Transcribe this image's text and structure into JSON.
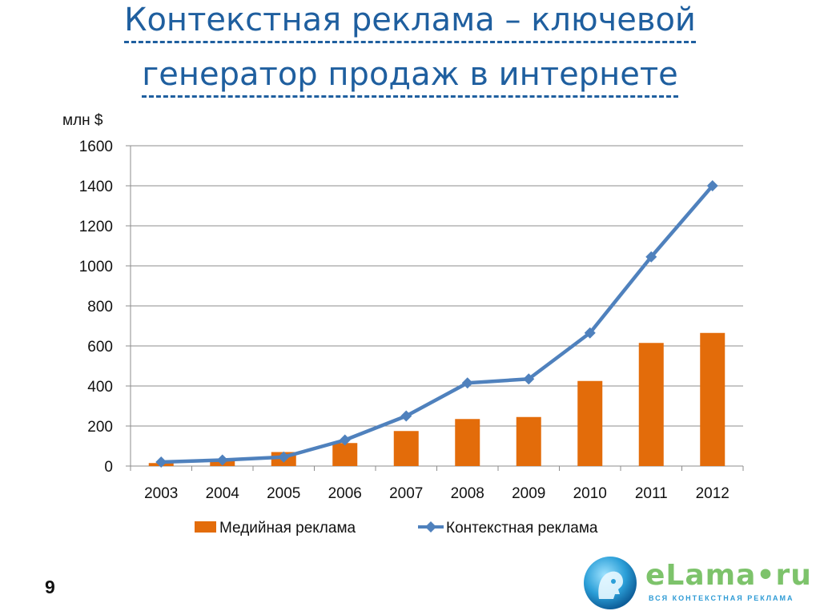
{
  "title": {
    "line1": "Контекстная реклама – ключевой",
    "line2": "генератор продаж в интернете"
  },
  "page_number": "9",
  "logo": {
    "name": "eLama•ru",
    "tagline": "ВСЯ КОНТЕКСТНАЯ РЕКЛАМА"
  },
  "colors": {
    "title": "#1f5f9f",
    "bar": "#e36c0a",
    "line": "#4f81bd"
  },
  "chart_data": {
    "type": "bar",
    "title": "",
    "ylabel": "млн $",
    "xlabel": "",
    "ylim": [
      0,
      1600
    ],
    "yticks": [
      0,
      200,
      400,
      600,
      800,
      1000,
      1200,
      1400,
      1600
    ],
    "grid": true,
    "legend_position": "bottom",
    "categories": [
      "2003",
      "2004",
      "2005",
      "2006",
      "2007",
      "2008",
      "2009",
      "2010",
      "2011",
      "2012"
    ],
    "series": [
      {
        "name": "Медийная реклама",
        "type": "bar",
        "values": [
          15,
          25,
          70,
          115,
          175,
          235,
          245,
          425,
          615,
          665
        ]
      },
      {
        "name": "Контекстная реклама",
        "type": "line",
        "values": [
          20,
          30,
          45,
          130,
          250,
          415,
          435,
          665,
          1045,
          1400
        ]
      }
    ]
  }
}
